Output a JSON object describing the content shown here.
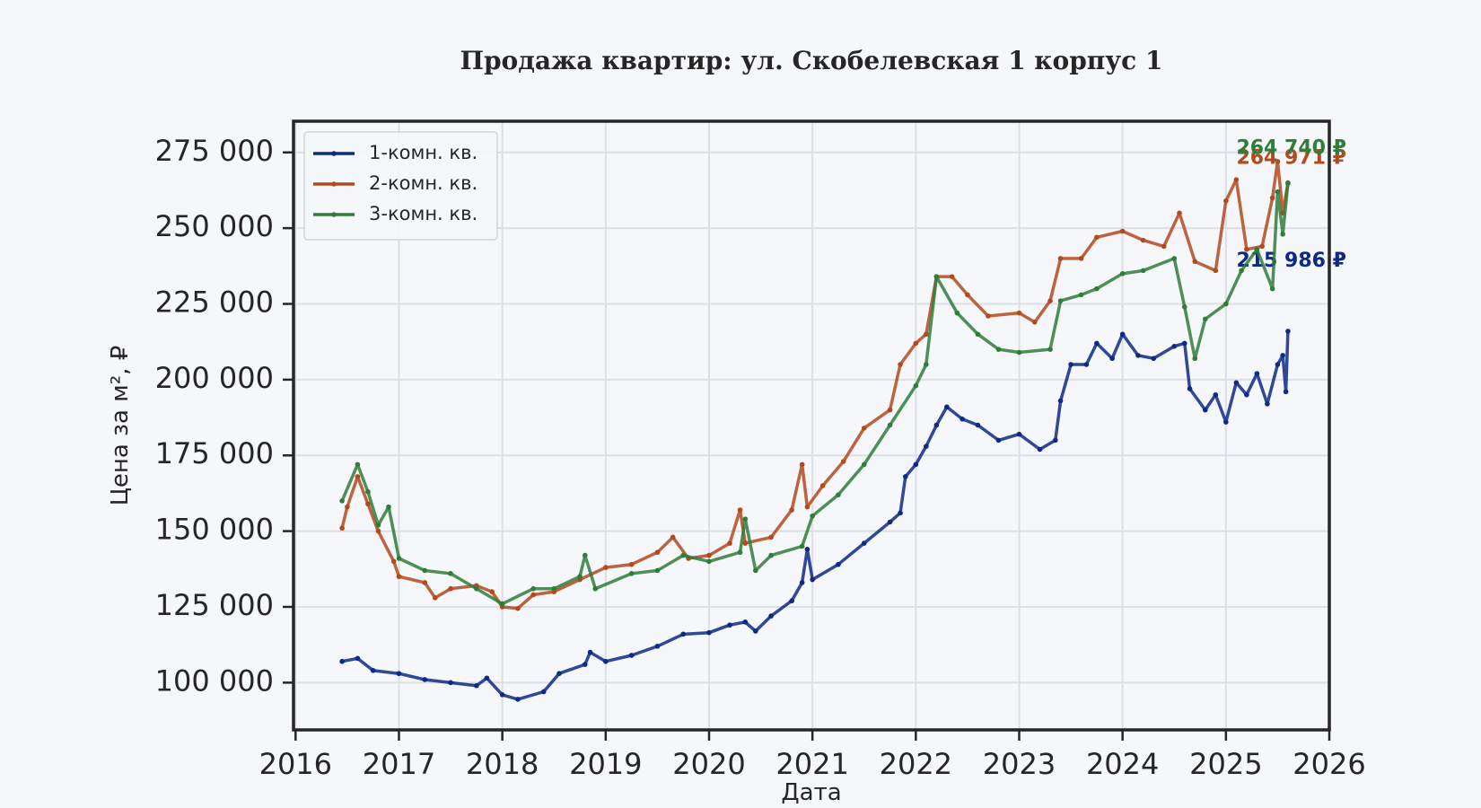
{
  "chart_data": {
    "type": "line",
    "title": "Продажа квартир: ул. Скобелевская 1 корпус 1",
    "xlabel": "Дата",
    "ylabel": "Цена за м², ₽",
    "xlim": [
      2015.98,
      2026
    ],
    "xticks": [
      2016,
      2017,
      2018,
      2019,
      2020,
      2021,
      2022,
      2023,
      2024,
      2025,
      2026
    ],
    "ylim": [
      84400,
      285300
    ],
    "yticks": [
      {
        "value": 100000,
        "label": "100 000"
      },
      {
        "value": 125000,
        "label": "125 000"
      },
      {
        "value": 150000,
        "label": "150 000"
      },
      {
        "value": 175000,
        "label": "175 000"
      },
      {
        "value": 200000,
        "label": "200 000"
      },
      {
        "value": 225000,
        "label": "225 000"
      },
      {
        "value": 250000,
        "label": "250 000"
      },
      {
        "value": 275000,
        "label": "275 000"
      }
    ],
    "grid": true,
    "legend": "upper left",
    "series": [
      {
        "name": "1-комн. кв.",
        "color": "#0d2a84",
        "end_label": "215 986 ₽",
        "x": [
          2016.45,
          2016.6,
          2016.75,
          2017.0,
          2017.25,
          2017.5,
          2017.75,
          2017.85,
          2018.0,
          2018.15,
          2018.4,
          2018.55,
          2018.8,
          2018.85,
          2019.0,
          2019.25,
          2019.5,
          2019.75,
          2020.0,
          2020.2,
          2020.35,
          2020.45,
          2020.6,
          2020.8,
          2020.9,
          2020.95,
          2021.0,
          2021.25,
          2021.5,
          2021.75,
          2021.85,
          2021.9,
          2022.0,
          2022.1,
          2022.2,
          2022.3,
          2022.45,
          2022.6,
          2022.8,
          2023.0,
          2023.2,
          2023.35,
          2023.4,
          2023.5,
          2023.65,
          2023.75,
          2023.9,
          2024.0,
          2024.15,
          2024.3,
          2024.5,
          2024.6,
          2024.65,
          2024.8,
          2024.9,
          2025.0,
          2025.1,
          2025.2,
          2025.3,
          2025.4,
          2025.5,
          2025.55,
          2025.58,
          2025.6
        ],
        "values": [
          107000,
          108000,
          104000,
          103000,
          101000,
          100000,
          99000,
          101500,
          96000,
          94500,
          97000,
          103000,
          106000,
          110000,
          107000,
          109000,
          112000,
          116000,
          116500,
          119000,
          120000,
          117000,
          122000,
          127000,
          133000,
          144000,
          134000,
          139000,
          146000,
          153000,
          156000,
          168000,
          172000,
          178000,
          185000,
          191000,
          187000,
          185000,
          180000,
          182000,
          177000,
          180000,
          193000,
          205000,
          205000,
          212000,
          207000,
          215000,
          208000,
          207000,
          211000,
          212000,
          197000,
          190000,
          195000,
          186000,
          199000,
          195000,
          202000,
          192000,
          205000,
          208000,
          196000,
          215986
        ]
      },
      {
        "name": "2-комн. кв.",
        "color": "#b14a1d",
        "end_label": "264 971 ₽",
        "x": [
          2016.45,
          2016.5,
          2016.6,
          2016.7,
          2016.8,
          2016.95,
          2017.0,
          2017.25,
          2017.35,
          2017.5,
          2017.75,
          2017.9,
          2018.0,
          2018.15,
          2018.3,
          2018.5,
          2018.75,
          2019.0,
          2019.25,
          2019.5,
          2019.65,
          2019.8,
          2020.0,
          2020.2,
          2020.3,
          2020.35,
          2020.6,
          2020.8,
          2020.9,
          2020.95,
          2021.1,
          2021.3,
          2021.5,
          2021.75,
          2021.85,
          2022.0,
          2022.1,
          2022.2,
          2022.35,
          2022.5,
          2022.7,
          2023.0,
          2023.15,
          2023.3,
          2023.4,
          2023.6,
          2023.75,
          2024.0,
          2024.2,
          2024.4,
          2024.55,
          2024.7,
          2024.9,
          2025.0,
          2025.1,
          2025.2,
          2025.35,
          2025.45,
          2025.5,
          2025.55,
          2025.6
        ],
        "values": [
          151000,
          158000,
          168000,
          159000,
          150000,
          140000,
          135000,
          133000,
          128000,
          131000,
          132000,
          130000,
          125000,
          124500,
          129000,
          130000,
          134000,
          138000,
          139000,
          143000,
          148000,
          141000,
          142000,
          146000,
          157000,
          146000,
          148000,
          157000,
          172000,
          158000,
          165000,
          173000,
          184000,
          190000,
          205000,
          212000,
          215000,
          234000,
          234000,
          228000,
          221000,
          222000,
          219000,
          226000,
          240000,
          240000,
          247000,
          249000,
          246000,
          244000,
          255000,
          239000,
          236000,
          259000,
          266000,
          243000,
          244000,
          260000,
          272000,
          255000,
          264971
        ]
      },
      {
        "name": "3-комн. кв.",
        "color": "#2f7d3a",
        "end_label": "264 740 ₽",
        "x": [
          2016.45,
          2016.6,
          2016.7,
          2016.8,
          2016.9,
          2017.0,
          2017.25,
          2017.5,
          2017.75,
          2018.0,
          2018.3,
          2018.5,
          2018.75,
          2018.8,
          2018.9,
          2019.25,
          2019.5,
          2019.75,
          2020.0,
          2020.3,
          2020.35,
          2020.45,
          2020.6,
          2020.9,
          2021.0,
          2021.25,
          2021.5,
          2021.75,
          2022.0,
          2022.1,
          2022.2,
          2022.4,
          2022.6,
          2022.8,
          2023.0,
          2023.3,
          2023.4,
          2023.6,
          2023.75,
          2024.0,
          2024.2,
          2024.5,
          2024.6,
          2024.7,
          2024.8,
          2025.0,
          2025.15,
          2025.3,
          2025.45,
          2025.5,
          2025.55,
          2025.6
        ],
        "values": [
          160000,
          172000,
          163000,
          152000,
          158000,
          141000,
          137000,
          136000,
          131000,
          126000,
          131000,
          131000,
          135000,
          142000,
          131000,
          136000,
          137000,
          142000,
          140000,
          143000,
          154000,
          137000,
          142000,
          145000,
          155000,
          162000,
          172000,
          185000,
          198000,
          205000,
          234000,
          222000,
          215000,
          210000,
          209000,
          210000,
          226000,
          228000,
          230000,
          235000,
          236000,
          240000,
          224000,
          207000,
          220000,
          225000,
          236000,
          243000,
          230000,
          262000,
          248000,
          264740
        ]
      }
    ]
  }
}
